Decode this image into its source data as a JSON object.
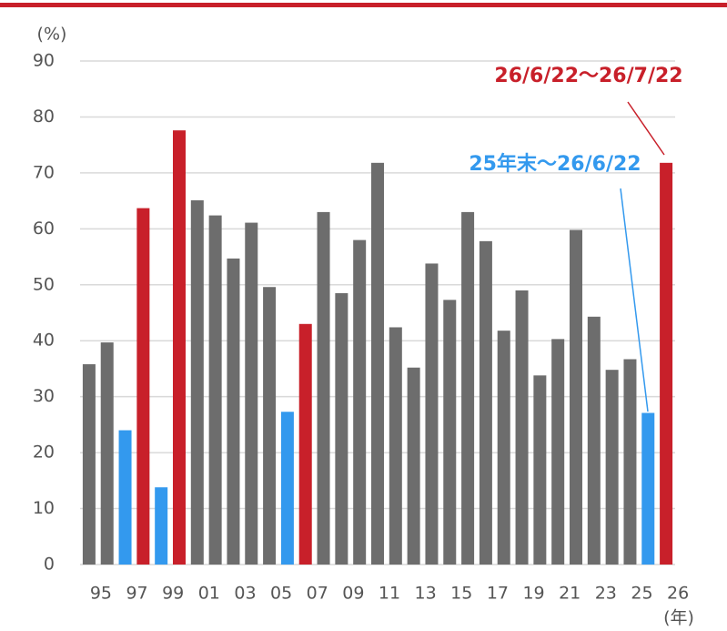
{
  "chart_data": {
    "type": "bar",
    "y_unit": "(%)",
    "x_unit": "(年)",
    "categories": [
      "95",
      null,
      "97",
      null,
      "99",
      null,
      "01",
      null,
      "03",
      null,
      "05",
      null,
      "07",
      null,
      "09",
      null,
      "11",
      null,
      "13",
      null,
      "15",
      null,
      "17",
      null,
      "19",
      null,
      "21",
      null,
      "23",
      null,
      "25",
      null,
      "26"
    ],
    "values": [
      35.8,
      39.7,
      24.0,
      63.7,
      13.8,
      77.6,
      65.1,
      62.4,
      54.7,
      61.1,
      49.6,
      27.3,
      43.0,
      63.0,
      48.5,
      58.0,
      71.8,
      42.4,
      35.2,
      53.8,
      47.3,
      63.0,
      57.8,
      41.8,
      49.0,
      33.8,
      40.3,
      59.8,
      44.3,
      34.8,
      36.7,
      27.1,
      71.8
    ],
    "colors": [
      "#6d6d6d",
      "#6d6d6d",
      "#3399ee",
      "#c8202a",
      "#3399ee",
      "#c8202a",
      "#6d6d6d",
      "#6d6d6d",
      "#6d6d6d",
      "#6d6d6d",
      "#6d6d6d",
      "#3399ee",
      "#c8202a",
      "#6d6d6d",
      "#6d6d6d",
      "#6d6d6d",
      "#6d6d6d",
      "#6d6d6d",
      "#6d6d6d",
      "#6d6d6d",
      "#6d6d6d",
      "#6d6d6d",
      "#6d6d6d",
      "#6d6d6d",
      "#6d6d6d",
      "#6d6d6d",
      "#6d6d6d",
      "#6d6d6d",
      "#6d6d6d",
      "#6d6d6d",
      "#6d6d6d",
      "#3399ee",
      "#c8202a"
    ],
    "ylim": [
      0,
      90
    ],
    "yticks": [
      0,
      10,
      20,
      30,
      40,
      50,
      60,
      70,
      80,
      90
    ],
    "grid": true,
    "annotations": [
      {
        "text": "26/6/22～26/7/22",
        "color": "#c8202a"
      },
      {
        "text": "25年末～26/6/22",
        "color": "#3399ee"
      }
    ]
  }
}
